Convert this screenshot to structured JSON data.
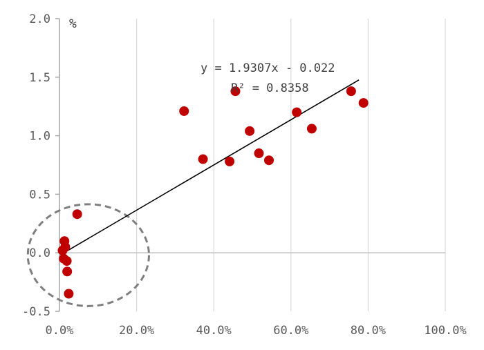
{
  "chart_data": {
    "type": "scatter",
    "title": "",
    "xlabel": "",
    "ylabel": "",
    "y_unit": "%",
    "xlim": [
      0,
      100
    ],
    "ylim": [
      -0.5,
      2.0
    ],
    "x_ticks": [
      {
        "value": 0,
        "label": "0.0%"
      },
      {
        "value": 20,
        "label": "20.0%"
      },
      {
        "value": 40,
        "label": "40.0%"
      },
      {
        "value": 60,
        "label": "60.0%"
      },
      {
        "value": 80,
        "label": "80.0%"
      },
      {
        "value": 100,
        "label": "100.0%"
      }
    ],
    "y_ticks": [
      {
        "value": 2.0,
        "label": "2.0"
      },
      {
        "value": 1.5,
        "label": "1.5"
      },
      {
        "value": 1.0,
        "label": "1.0"
      },
      {
        "value": 0.5,
        "label": "0.5"
      },
      {
        "value": 0.0,
        "label": "0.0"
      },
      {
        "value": -0.5,
        "label": "-0.5"
      }
    ],
    "grid": {
      "vertical": true,
      "horizontal": false
    },
    "marker_color": "#C00000",
    "points": [
      {
        "x": 32.3,
        "y": 1.21
      },
      {
        "x": 37.2,
        "y": 0.8
      },
      {
        "x": 44.1,
        "y": 0.78
      },
      {
        "x": 45.6,
        "y": 1.38
      },
      {
        "x": 49.3,
        "y": 1.04
      },
      {
        "x": 51.7,
        "y": 0.85
      },
      {
        "x": 54.3,
        "y": 0.79
      },
      {
        "x": 61.5,
        "y": 1.2
      },
      {
        "x": 65.4,
        "y": 1.06
      },
      {
        "x": 75.6,
        "y": 1.38
      },
      {
        "x": 78.8,
        "y": 1.28
      },
      {
        "x": 4.6,
        "y": 0.33
      },
      {
        "x": 1.3,
        "y": 0.1
      },
      {
        "x": 1.5,
        "y": 0.05
      },
      {
        "x": 0.8,
        "y": 0.02
      },
      {
        "x": 1.1,
        "y": -0.05
      },
      {
        "x": 1.9,
        "y": -0.07
      },
      {
        "x": 2.0,
        "y": -0.16
      },
      {
        "x": 2.4,
        "y": -0.35
      }
    ],
    "trendline": {
      "color": "#000000",
      "x_range": [
        0.5,
        77.6
      ],
      "equation": "y = 1.9307x - 0.022",
      "r_squared": "R² = 0.8358"
    },
    "annotation_ellipse": {
      "cx": 7.5,
      "cy": -0.02,
      "rx": 15.7,
      "ry": 0.435,
      "color": "#7F7F7F",
      "style": "dashed"
    }
  }
}
